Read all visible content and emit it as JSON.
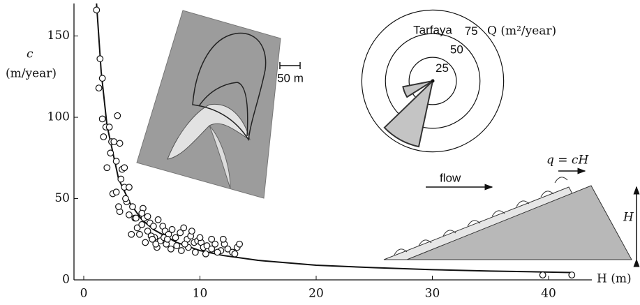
{
  "chart_data": [
    {
      "type": "scatter",
      "x_label": "H (m)",
      "y_label": "c",
      "y_unit": "(m/year)",
      "xlim": [
        0,
        44
      ],
      "xticks": [
        0,
        10,
        20,
        30,
        40
      ],
      "ylim": [
        0,
        170
      ],
      "yticks": [
        0,
        50,
        100,
        150
      ],
      "point_color": "#ffffff",
      "line_color": "#111111",
      "x": [
        1.1,
        1.4,
        1.3,
        1.6,
        1.6,
        1.9,
        2.2,
        1.7,
        2.4,
        2.3,
        2.6,
        2.9,
        3.1,
        2.0,
        2.8,
        3.3,
        3.5,
        3.2,
        2.5,
        2.8,
        3.5,
        3.9,
        3.1,
        3.7,
        3.9,
        4.2,
        4.4,
        5.1,
        4.1,
        4.6,
        5.2,
        5.5,
        5.0,
        5.7,
        6.0,
        6.1,
        5.5,
        6.4,
        6.8,
        7.0,
        7.3,
        7.6,
        7.9,
        8.3,
        8.6,
        8.9,
        9.2,
        9.5,
        9.8,
        10.1,
        10.3,
        10.6,
        11.0,
        11.3,
        11.8,
        12.1,
        12.4,
        12.8,
        13.2,
        13.4,
        6.3,
        6.6,
        7.1,
        7.5,
        8.0,
        8.4,
        9.0,
        9.6,
        10.5,
        11.5,
        6.9,
        8.7,
        10.0,
        11.0,
        5.8,
        7.2,
        9.3,
        12.0,
        13.0,
        3.0,
        4.8,
        5.3,
        5.9,
        6.2,
        4.5,
        5.0,
        3.6,
        39.5,
        42
      ],
      "y": [
        166,
        136,
        118,
        124,
        99,
        94,
        94,
        88,
        85,
        78,
        85,
        101,
        84,
        69,
        73,
        68,
        69,
        62,
        53,
        54,
        57,
        57,
        42,
        48,
        40,
        45,
        38,
        44,
        28,
        32,
        38,
        39,
        34,
        35,
        33,
        26,
        30,
        37,
        33,
        30,
        28,
        31,
        26,
        29,
        32,
        25,
        27,
        23,
        24,
        23,
        20,
        21,
        19,
        22,
        18,
        22,
        19,
        17,
        20,
        22,
        20,
        24,
        22,
        19,
        21,
        18,
        20,
        17,
        16,
        17,
        26,
        22,
        26,
        25,
        27,
        25,
        30,
        25,
        16,
        45,
        28,
        23,
        25,
        22,
        38,
        41,
        50,
        3,
        3
      ],
      "fit": {
        "x": [
          1.1,
          1.5,
          2,
          3,
          4,
          5,
          6,
          8,
          10,
          12,
          15,
          20,
          25,
          30,
          35,
          40,
          42
        ],
        "values": [
          170,
          128,
          95,
          62,
          47,
          37,
          31,
          23,
          18,
          15,
          12,
          9,
          7.5,
          6.3,
          5.4,
          4.8,
          4.5
        ]
      },
      "annotations": [
        "50 m",
        "flow",
        "q = cH",
        "H"
      ]
    },
    {
      "type": "rose",
      "title": "Tarfaya",
      "axis_label": "Q (m²/year)",
      "rlim": [
        0,
        76
      ],
      "rticks": [
        25,
        50,
        75
      ],
      "color": "#c4c4c4",
      "sectors": [
        {
          "from": 192,
          "to": 226,
          "value": 71
        },
        {
          "from": 238,
          "to": 259,
          "value": 32
        }
      ]
    }
  ]
}
